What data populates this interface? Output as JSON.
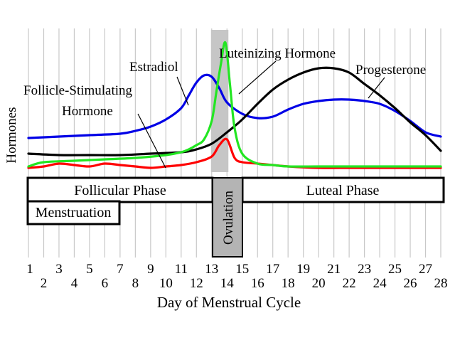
{
  "chart_data": {
    "type": "line",
    "title": "",
    "xlabel": "Day of Menstrual Cycle",
    "ylabel": "Hormones",
    "x_ticks": [
      1,
      2,
      3,
      4,
      5,
      6,
      7,
      8,
      9,
      10,
      11,
      12,
      13,
      14,
      15,
      16,
      17,
      18,
      19,
      20,
      21,
      22,
      23,
      24,
      25,
      26,
      27,
      28
    ],
    "xlim": [
      1,
      28
    ],
    "ylim": [
      0,
      100
    ],
    "grid": true,
    "ovulation_window": [
      13,
      14
    ],
    "series": [
      {
        "name": "Estradiol",
        "color": "#0000e6",
        "x": [
          1,
          3,
          5,
          7,
          8,
          9,
          10,
          11,
          11.5,
          12,
          12.5,
          13,
          13.5,
          14,
          15,
          16,
          17,
          18,
          19,
          20,
          21,
          22,
          23,
          24,
          25,
          26,
          27,
          28
        ],
        "values": [
          23,
          24,
          25,
          26,
          28,
          31,
          36,
          44,
          53,
          62,
          67,
          66,
          58,
          48,
          40,
          37,
          38,
          43,
          47,
          49,
          50,
          50,
          49,
          47,
          42,
          35,
          27,
          24
        ]
      },
      {
        "name": "Luteinizing Hormone",
        "color": "#22e622",
        "x": [
          1,
          2,
          4,
          6,
          8,
          10,
          11,
          11.5,
          12,
          12.5,
          13,
          13.3,
          13.6,
          13.9,
          14.2,
          14.5,
          15,
          16,
          17,
          18,
          20,
          22,
          24,
          26,
          28
        ],
        "values": [
          3,
          6,
          7,
          8,
          9,
          11,
          13,
          15,
          18,
          22,
          35,
          55,
          75,
          90,
          60,
          30,
          12,
          5,
          4,
          3,
          3,
          3,
          3,
          3,
          3
        ]
      },
      {
        "name": "Follicle-Stimulating Hormone",
        "color": "#ff0000",
        "x": [
          1,
          2,
          3,
          4,
          5,
          6,
          7,
          8,
          9,
          10,
          11,
          12,
          13,
          13.5,
          14,
          14.5,
          15,
          16,
          17,
          18,
          20,
          22,
          24,
          26,
          28
        ],
        "values": [
          2,
          3,
          5,
          4,
          3,
          5,
          4,
          3,
          2,
          3,
          4,
          6,
          10,
          18,
          22,
          9,
          6,
          5,
          4,
          3,
          2,
          2,
          2,
          2,
          2
        ]
      },
      {
        "name": "Progesterone",
        "color": "#000000",
        "x": [
          1,
          3,
          5,
          7,
          9,
          11,
          12,
          13,
          14,
          15,
          16,
          17,
          18,
          19,
          20,
          21,
          22,
          23,
          24,
          25,
          26,
          27,
          28
        ],
        "values": [
          12,
          11,
          11,
          11,
          12,
          13,
          15,
          19,
          27,
          36,
          47,
          57,
          64,
          69,
          72,
          72,
          69,
          61,
          53,
          44,
          34,
          25,
          14
        ]
      }
    ],
    "annotations": [
      {
        "text": "Estradiol"
      },
      {
        "text": "Luteinizing Hormone"
      },
      {
        "text": "Progesterone"
      },
      {
        "text": "Follicle-Stimulating"
      },
      {
        "text": "Hormone"
      }
    ],
    "phases": {
      "follicular": "Follicular Phase",
      "luteal": "Luteal Phase",
      "menstruation": "Menstruation",
      "ovulation": "Ovulation"
    }
  }
}
